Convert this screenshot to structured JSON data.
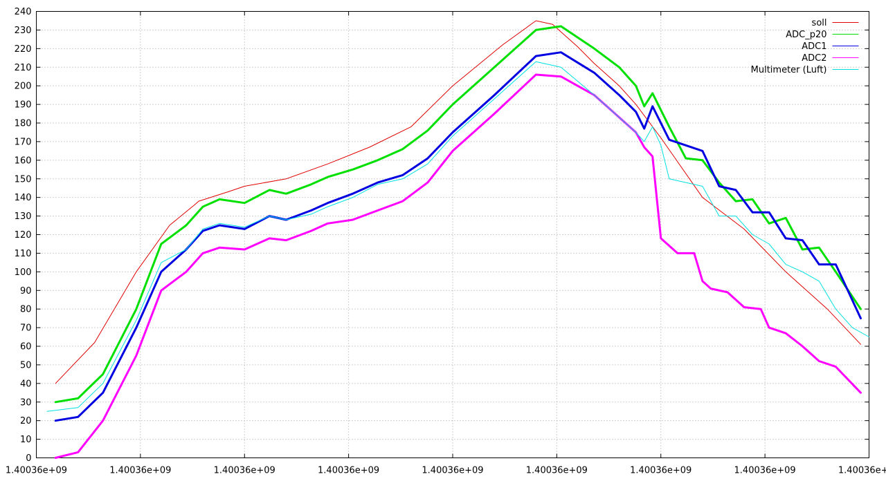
{
  "chart_data": {
    "type": "line",
    "title": "",
    "xlabel": "",
    "ylabel": "",
    "ylim": [
      0,
      240
    ],
    "y_ticks": [
      0,
      10,
      20,
      30,
      40,
      50,
      60,
      70,
      80,
      90,
      100,
      110,
      120,
      130,
      140,
      150,
      160,
      170,
      180,
      190,
      200,
      210,
      220,
      230,
      240
    ],
    "x_tick_labels": [
      "1.40036e+09",
      "1.40036e+09",
      "1.40036e+09",
      "1.40036e+09",
      "1.40036e+09",
      "1.40036e+09",
      "1.40036e+09",
      "1.40036e+09",
      "1.40036e+09"
    ],
    "grid": true,
    "legend_position": "top-right",
    "x_scale_note": "x values are in relative units 0-1 across the plotted time span",
    "series": [
      {
        "name": "soll",
        "color": "#e00000",
        "x": [
          0.023,
          0.07,
          0.12,
          0.16,
          0.19,
          0.195,
          0.23,
          0.25,
          0.3,
          0.35,
          0.4,
          0.45,
          0.5,
          0.56,
          0.6,
          0.62,
          0.63,
          0.65,
          0.67,
          0.7,
          0.72,
          0.75,
          0.8,
          0.85,
          0.9,
          0.95,
          0.99
        ],
        "y": [
          40,
          62,
          100,
          125,
          136,
          138,
          143,
          146,
          150,
          158,
          167,
          178,
          200,
          222,
          235,
          233,
          229,
          221,
          212,
          200,
          190,
          172,
          140,
          123,
          100,
          80,
          61
        ]
      },
      {
        "name": "ADC_p20",
        "color": "#00e000",
        "x": [
          0.023,
          0.05,
          0.08,
          0.12,
          0.15,
          0.18,
          0.2,
          0.22,
          0.25,
          0.28,
          0.3,
          0.33,
          0.35,
          0.38,
          0.41,
          0.44,
          0.47,
          0.5,
          0.55,
          0.6,
          0.63,
          0.67,
          0.7,
          0.72,
          0.73,
          0.74,
          0.76,
          0.78,
          0.8,
          0.82,
          0.84,
          0.86,
          0.88,
          0.9,
          0.92,
          0.94,
          0.96,
          0.99
        ],
        "y": [
          30,
          32,
          45,
          80,
          115,
          125,
          135,
          139,
          137,
          144,
          142,
          147,
          151,
          155,
          160,
          166,
          176,
          190,
          210,
          230,
          232,
          220,
          210,
          200,
          189,
          196,
          178,
          161,
          160,
          148,
          138,
          139,
          126,
          129,
          112,
          113,
          100,
          80
        ]
      },
      {
        "name": "ADC1",
        "color": "#0000e0",
        "x": [
          0.023,
          0.05,
          0.08,
          0.12,
          0.15,
          0.18,
          0.2,
          0.22,
          0.25,
          0.28,
          0.3,
          0.33,
          0.35,
          0.38,
          0.41,
          0.44,
          0.47,
          0.5,
          0.55,
          0.6,
          0.63,
          0.67,
          0.7,
          0.72,
          0.73,
          0.74,
          0.76,
          0.78,
          0.8,
          0.82,
          0.84,
          0.86,
          0.88,
          0.9,
          0.92,
          0.94,
          0.96,
          0.99
        ],
        "y": [
          20,
          22,
          35,
          70,
          100,
          112,
          122,
          125,
          123,
          130,
          128,
          133,
          137,
          142,
          148,
          152,
          161,
          175,
          195,
          216,
          218,
          207,
          195,
          186,
          177,
          189,
          171,
          168,
          165,
          146,
          144,
          132,
          132,
          118,
          117,
          104,
          104,
          75
        ]
      },
      {
        "name": "ADC2",
        "color": "#ff00ff",
        "x": [
          0.023,
          0.05,
          0.08,
          0.12,
          0.15,
          0.18,
          0.2,
          0.22,
          0.25,
          0.28,
          0.3,
          0.33,
          0.35,
          0.38,
          0.41,
          0.44,
          0.47,
          0.5,
          0.55,
          0.6,
          0.63,
          0.67,
          0.7,
          0.72,
          0.73,
          0.74,
          0.75,
          0.77,
          0.79,
          0.8,
          0.81,
          0.83,
          0.85,
          0.87,
          0.88,
          0.9,
          0.92,
          0.94,
          0.96,
          0.99
        ],
        "y": [
          0,
          3,
          20,
          55,
          90,
          100,
          110,
          113,
          112,
          118,
          117,
          122,
          126,
          128,
          133,
          138,
          148,
          165,
          185,
          206,
          205,
          195,
          183,
          175,
          167,
          162,
          118,
          110,
          110,
          95,
          91,
          89,
          81,
          80,
          70,
          67,
          60,
          52,
          49,
          35
        ]
      },
      {
        "name": "Multimeter (Luft)",
        "color": "#00e0e0",
        "x": [
          0.013,
          0.05,
          0.08,
          0.12,
          0.15,
          0.18,
          0.2,
          0.22,
          0.25,
          0.28,
          0.3,
          0.33,
          0.35,
          0.38,
          0.41,
          0.44,
          0.47,
          0.5,
          0.55,
          0.6,
          0.63,
          0.67,
          0.7,
          0.72,
          0.73,
          0.74,
          0.75,
          0.76,
          0.78,
          0.8,
          0.82,
          0.84,
          0.86,
          0.88,
          0.9,
          0.92,
          0.94,
          0.96,
          0.98,
          1.0
        ],
        "y": [
          25,
          27,
          40,
          74,
          105,
          112,
          123,
          126,
          124,
          130,
          128,
          131,
          135,
          140,
          147,
          150,
          158,
          173,
          193,
          213,
          210,
          195,
          183,
          175,
          170,
          178,
          168,
          150,
          148,
          146,
          130,
          130,
          120,
          115,
          104,
          100,
          95,
          80,
          70,
          65
        ]
      }
    ]
  }
}
